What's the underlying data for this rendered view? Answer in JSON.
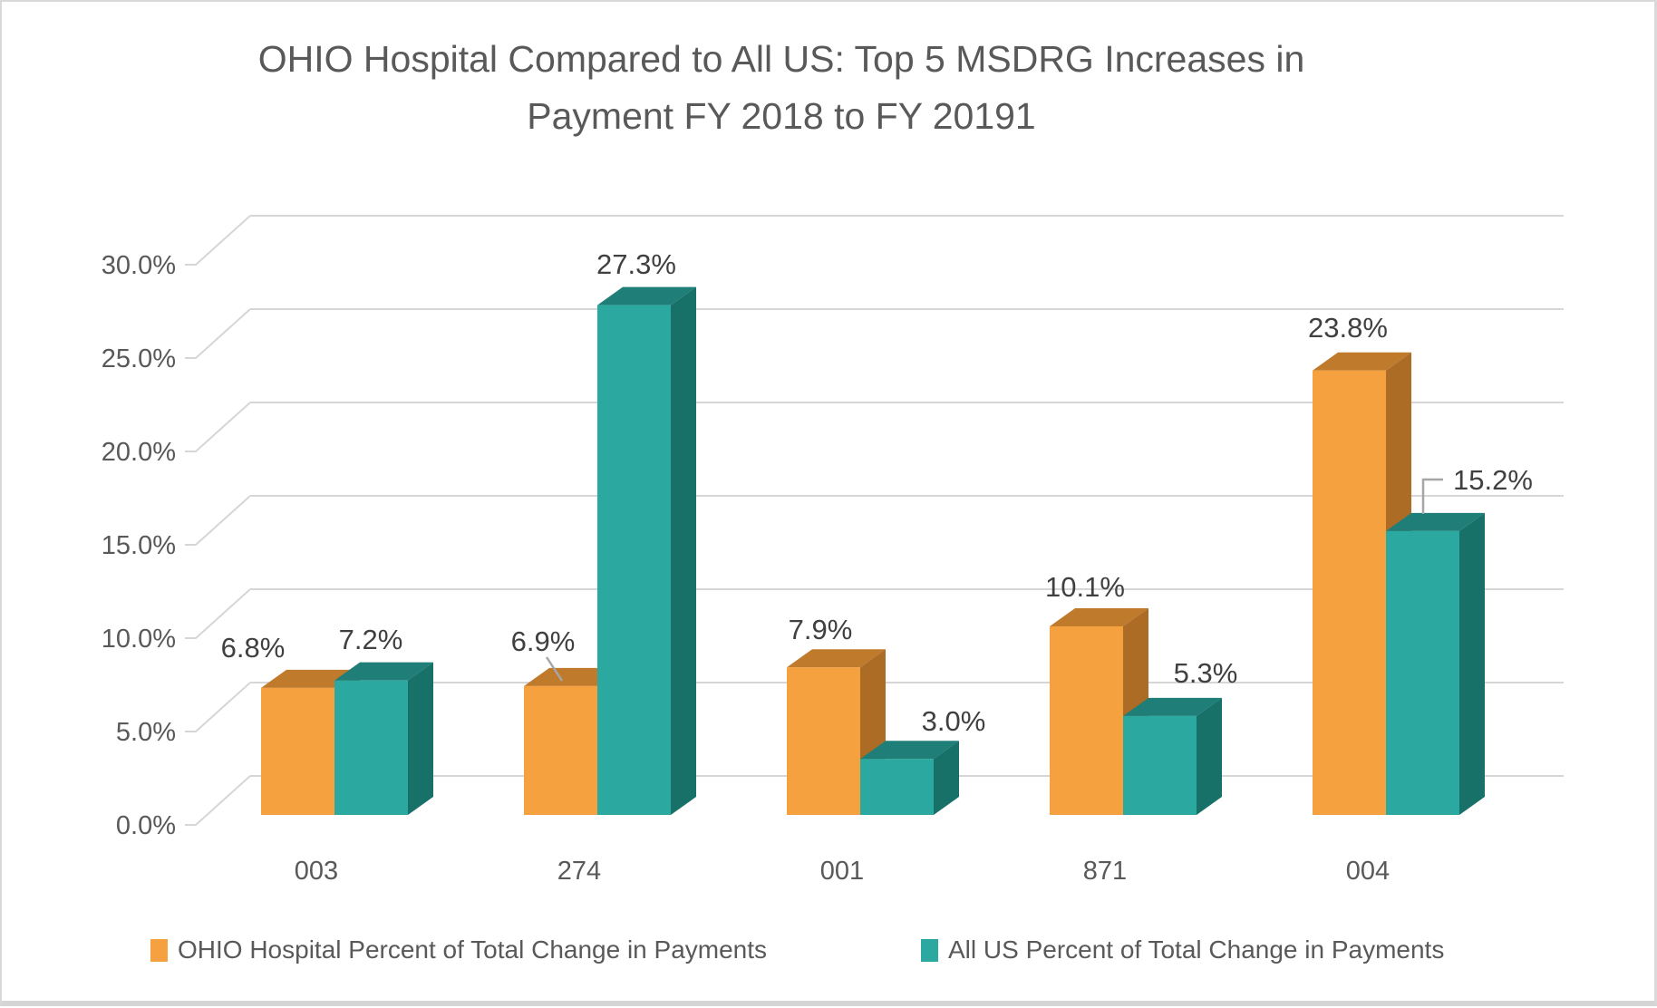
{
  "title": {
    "line1": "OHIO Hospital Compared to All US: Top 5 MSDRG Increases in",
    "line2": "Payment FY 2018 to FY 20191"
  },
  "chart_data": {
    "type": "bar",
    "style": "3d-clustered-column",
    "title": "OHIO Hospital Compared to All US: Top 5 MSDRG Increases in Payment FY 2018 to FY 20191",
    "categories": [
      "003",
      "274",
      "001",
      "871",
      "004"
    ],
    "series": [
      {
        "name": "OHIO Hospital Percent of Total Change in Payments",
        "values": [
          6.8,
          6.9,
          7.9,
          10.1,
          23.8
        ],
        "labels": [
          "6.8%",
          "6.9%",
          "7.9%",
          "10.1%",
          "23.8%"
        ],
        "color_front": "#F6A13F",
        "color_top": "#C07A2C",
        "color_side": "#AC6C25"
      },
      {
        "name": "All US Percent of Total Change in Payments",
        "values": [
          7.2,
          27.3,
          3.0,
          5.3,
          15.2
        ],
        "labels": [
          "7.2%",
          "27.3%",
          "3.0%",
          "5.3%",
          "15.2%"
        ],
        "color_front": "#2BA8A0",
        "color_top": "#1F7E77",
        "color_side": "#177169"
      }
    ],
    "xlabel": "",
    "ylabel": "",
    "y_axis": {
      "min": 0,
      "max": 30,
      "step": 5,
      "tick_labels": [
        "0.0%",
        "5.0%",
        "10.0%",
        "15.0%",
        "20.0%",
        "25.0%",
        "30.0%"
      ]
    },
    "grid": true,
    "legend_position": "bottom"
  },
  "colors": {
    "axis_text": "#595959",
    "data_label_text": "#404040",
    "gridline": "#d6d6d6",
    "leader_line": "#a6a6a6",
    "background": "#ffffff",
    "border": "#d9d9d9"
  }
}
